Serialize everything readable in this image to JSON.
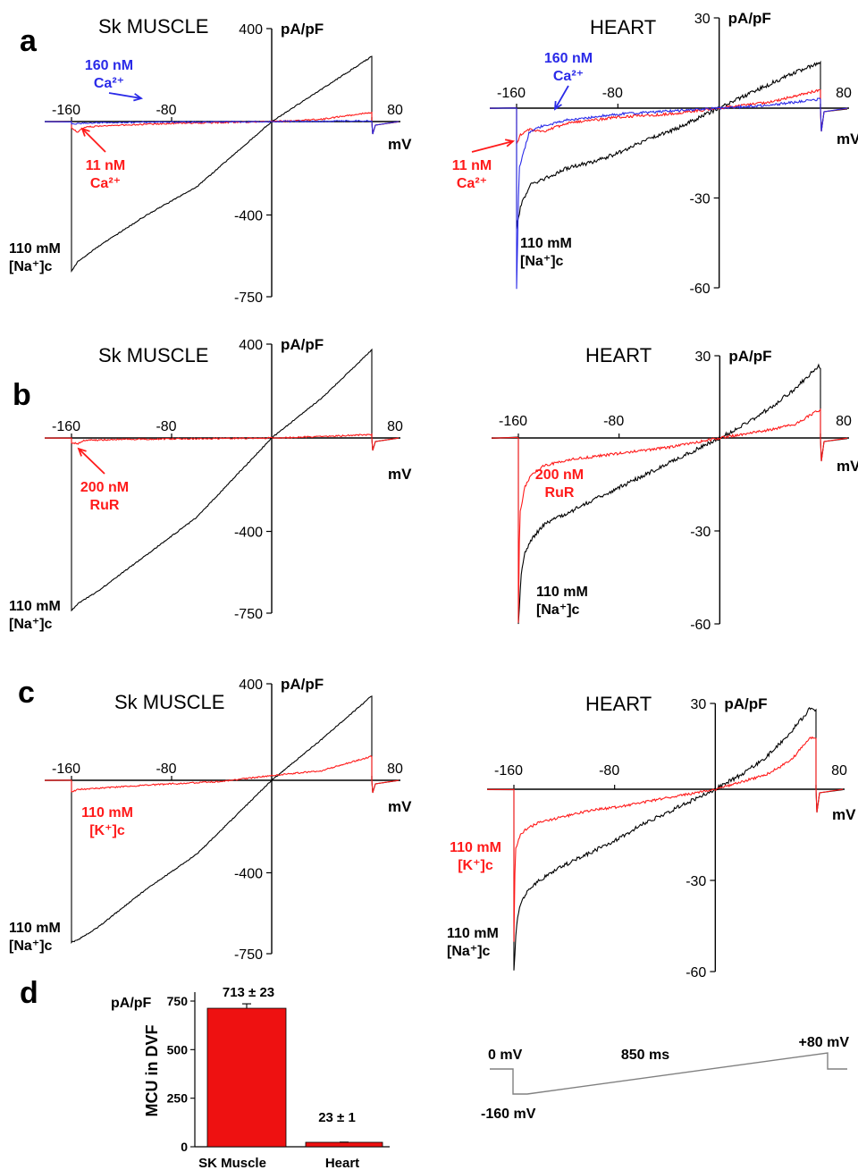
{
  "colors": {
    "black": "#000000",
    "red": "#ff1a1a",
    "blue": "#2a2ae8",
    "grey": "#808080",
    "bar": "#ee1111"
  },
  "panel_letters": [
    "a",
    "b",
    "c",
    "d"
  ],
  "chart_data": [
    {
      "type": "line",
      "id": "a-sk",
      "title": "Sk MUSCLE",
      "xlabel": "mV",
      "ylabel": "pA/pF",
      "xlim": [
        -160,
        80
      ],
      "ylim": [
        -750,
        400
      ],
      "x_ticks": [
        {
          "value": -160,
          "label": "-160"
        },
        {
          "value": -80,
          "label": "-80"
        },
        {
          "value": 80,
          "label": "80"
        }
      ],
      "y_ticks": [
        {
          "value": 400,
          "label": "400"
        },
        {
          "value": -400,
          "label": "-400"
        },
        {
          "value": -750,
          "label": "-750"
        }
      ],
      "series": [
        {
          "color": "black",
          "x": [
            -160,
            -155,
            -140,
            -100,
            -60,
            0,
            40,
            80
          ],
          "y": [
            -640,
            -600,
            -540,
            -400,
            -280,
            0,
            140,
            280
          ]
        },
        {
          "color": "red",
          "x": [
            -160,
            -155,
            -150,
            -140,
            -120,
            -80,
            -40,
            0,
            40,
            80
          ],
          "y": [
            -30,
            -45,
            -25,
            -20,
            -15,
            -8,
            -4,
            0,
            10,
            40
          ]
        },
        {
          "color": "blue",
          "x": [
            -160,
            -150,
            -120,
            -80,
            0,
            80
          ],
          "y": [
            -10,
            -6,
            -4,
            -2,
            0,
            3
          ]
        }
      ],
      "annotations": [
        {
          "lines": [
            "160 nM",
            "Ca²⁺"
          ],
          "color": "blue"
        },
        {
          "lines": [
            "11 nM",
            "Ca²⁺"
          ],
          "color": "red"
        },
        {
          "lines": [
            "110 mM",
            "[Na⁺]c"
          ],
          "color": "black"
        }
      ]
    },
    {
      "type": "line",
      "id": "a-heart",
      "title": "HEART",
      "xlabel": "mV",
      "ylabel": "pA/pF",
      "xlim": [
        -160,
        80
      ],
      "ylim": [
        -60,
        30
      ],
      "x_ticks": [
        {
          "value": -160,
          "label": "-160"
        },
        {
          "value": -80,
          "label": "-80"
        },
        {
          "value": 80,
          "label": "80"
        }
      ],
      "y_ticks": [
        {
          "value": 30,
          "label": "30"
        },
        {
          "value": -30,
          "label": "-30"
        },
        {
          "value": -60,
          "label": "-60"
        }
      ],
      "series": [
        {
          "color": "black",
          "x": [
            -160,
            -157,
            -150,
            -140,
            -120,
            -100,
            -80,
            -60,
            -40,
            -20,
            0,
            20,
            40,
            60,
            79
          ],
          "y": [
            -40,
            -33,
            -26,
            -24,
            -20,
            -18,
            -15,
            -11,
            -8,
            -4,
            0,
            4,
            8,
            12,
            15
          ]
        },
        {
          "color": "red",
          "x": [
            -160,
            -157,
            -150,
            -140,
            -120,
            -100,
            -80,
            -40,
            0,
            40,
            60,
            79
          ],
          "y": [
            -12,
            -9,
            -7,
            -8,
            -5,
            -4,
            -3,
            -2,
            0,
            2,
            4,
            6
          ]
        },
        {
          "color": "blue",
          "x": [
            -160,
            -158,
            -150,
            -140,
            -120,
            -100,
            -80,
            -40,
            0,
            40,
            60,
            79
          ],
          "y": [
            -60,
            -20,
            -8,
            -6,
            -4,
            -3,
            -2,
            -1,
            0,
            1,
            2,
            3
          ]
        }
      ],
      "annotations": [
        {
          "lines": [
            "160 nM",
            "Ca²⁺"
          ],
          "color": "blue"
        },
        {
          "lines": [
            "11 nM",
            "Ca²⁺"
          ],
          "color": "red"
        },
        {
          "lines": [
            "110 mM",
            "[Na⁺]c"
          ],
          "color": "black"
        }
      ]
    },
    {
      "type": "line",
      "id": "b-sk",
      "title": "Sk MUSCLE",
      "xlabel": "mV",
      "ylabel": "pA/pF",
      "xlim": [
        -160,
        80
      ],
      "ylim": [
        -750,
        400
      ],
      "x_ticks": [
        {
          "value": -160,
          "label": "-160"
        },
        {
          "value": -80,
          "label": "-80"
        },
        {
          "value": 80,
          "label": "80"
        }
      ],
      "y_ticks": [
        {
          "value": 400,
          "label": "400"
        },
        {
          "value": -400,
          "label": "-400"
        },
        {
          "value": -750,
          "label": "-750"
        }
      ],
      "series": [
        {
          "color": "black",
          "x": [
            -160,
            -155,
            -140,
            -100,
            -60,
            0,
            40,
            80
          ],
          "y": [
            -740,
            -710,
            -660,
            -500,
            -340,
            0,
            170,
            375
          ]
        },
        {
          "color": "red",
          "x": [
            -160,
            -155,
            -150,
            -120,
            -80,
            0,
            40,
            80
          ],
          "y": [
            -20,
            -25,
            -10,
            -6,
            -4,
            0,
            6,
            15
          ]
        }
      ],
      "annotations": [
        {
          "lines": [
            "200 nM",
            "RuR"
          ],
          "color": "red"
        },
        {
          "lines": [
            "110 mM",
            "[Na⁺]c"
          ],
          "color": "black"
        }
      ]
    },
    {
      "type": "line",
      "id": "b-heart",
      "title": "HEART",
      "xlabel": "mV",
      "ylabel": "pA/pF",
      "xlim": [
        -160,
        80
      ],
      "ylim": [
        -60,
        30
      ],
      "x_ticks": [
        {
          "value": -160,
          "label": "-160"
        },
        {
          "value": -80,
          "label": "-80"
        },
        {
          "value": 80,
          "label": "80"
        }
      ],
      "y_ticks": [
        {
          "value": 30,
          "label": "30"
        },
        {
          "value": -30,
          "label": "-30"
        },
        {
          "value": -60,
          "label": "-60"
        }
      ],
      "series": [
        {
          "color": "black",
          "x": [
            -160,
            -158,
            -155,
            -150,
            -140,
            -120,
            -100,
            -80,
            -60,
            -40,
            -20,
            0,
            20,
            40,
            60,
            78
          ],
          "y": [
            -60,
            -45,
            -37,
            -33,
            -28,
            -24,
            -20,
            -16,
            -12,
            -8,
            -4,
            0,
            5,
            11,
            18,
            26
          ]
        },
        {
          "color": "red",
          "x": [
            -160,
            -159,
            -155,
            -150,
            -140,
            -120,
            -100,
            -80,
            -40,
            0,
            40,
            60,
            78
          ],
          "y": [
            -60,
            -25,
            -16,
            -12,
            -9,
            -7,
            -6,
            -5,
            -3,
            0,
            3,
            5,
            10
          ]
        }
      ],
      "annotations": [
        {
          "lines": [
            "200 nM",
            "RuR"
          ],
          "color": "red"
        },
        {
          "lines": [
            "110 mM",
            "[Na⁺]c"
          ],
          "color": "black"
        }
      ]
    },
    {
      "type": "line",
      "id": "c-sk",
      "title": "Sk MUSCLE",
      "xlabel": "mV",
      "ylabel": "pA/pF",
      "xlim": [
        -160,
        80
      ],
      "ylim": [
        -750,
        400
      ],
      "x_ticks": [
        {
          "value": -160,
          "label": "-160"
        },
        {
          "value": -80,
          "label": "-80"
        },
        {
          "value": 80,
          "label": "80"
        }
      ],
      "y_ticks": [
        {
          "value": 400,
          "label": "400"
        },
        {
          "value": -400,
          "label": "-400"
        },
        {
          "value": -750,
          "label": "-750"
        }
      ],
      "series": [
        {
          "color": "black",
          "x": [
            -160,
            -155,
            -140,
            -100,
            -60,
            0,
            40,
            80
          ],
          "y": [
            -700,
            -690,
            -640,
            -470,
            -320,
            0,
            170,
            350
          ]
        },
        {
          "color": "red",
          "x": [
            -160,
            -155,
            -140,
            -120,
            -80,
            -40,
            0,
            40,
            80
          ],
          "y": [
            -50,
            -40,
            -35,
            -28,
            -15,
            -5,
            20,
            40,
            100
          ]
        }
      ],
      "annotations": [
        {
          "lines": [
            "110 mM",
            "[K⁺]c"
          ],
          "color": "red"
        },
        {
          "lines": [
            "110 mM",
            "[Na⁺]c"
          ],
          "color": "black"
        }
      ]
    },
    {
      "type": "line",
      "id": "c-heart",
      "title": "HEART",
      "xlabel": "mV",
      "ylabel": "pA/pF",
      "xlim": [
        -160,
        80
      ],
      "ylim": [
        -60,
        30
      ],
      "x_ticks": [
        {
          "value": -160,
          "label": "-160"
        },
        {
          "value": -80,
          "label": "-80"
        },
        {
          "value": 80,
          "label": "80"
        }
      ],
      "y_ticks": [
        {
          "value": 30,
          "label": "30"
        },
        {
          "value": -30,
          "label": "-30"
        },
        {
          "value": -60,
          "label": "-60"
        }
      ],
      "series": [
        {
          "color": "black",
          "x": [
            -160,
            -158,
            -155,
            -150,
            -140,
            -120,
            -100,
            -80,
            -60,
            -40,
            -20,
            0,
            20,
            40,
            60,
            75
          ],
          "y": [
            -60,
            -45,
            -38,
            -34,
            -30,
            -25,
            -21,
            -17,
            -12,
            -8,
            -4,
            0,
            5,
            11,
            20,
            28
          ]
        },
        {
          "color": "red",
          "x": [
            -160,
            -159,
            -155,
            -150,
            -140,
            -120,
            -100,
            -80,
            -40,
            0,
            40,
            60,
            75
          ],
          "y": [
            -50,
            -20,
            -15,
            -13,
            -11,
            -9,
            -7,
            -6,
            -3,
            0,
            5,
            10,
            18
          ]
        }
      ],
      "annotations": [
        {
          "lines": [
            "110 mM",
            "[K⁺]c"
          ],
          "color": "red"
        },
        {
          "lines": [
            "110 mM",
            "[Na⁺]c"
          ],
          "color": "black"
        }
      ]
    },
    {
      "type": "bar",
      "id": "d-bar",
      "categories": [
        "SK Muscle",
        "Heart"
      ],
      "values": [
        713,
        23
      ],
      "errors": [
        23,
        1
      ],
      "value_labels": [
        "713 ± 23",
        "23 ± 1"
      ],
      "ylabel": "MCU in DVF",
      "unit_label": "pA/pF",
      "ylim": [
        0,
        750
      ],
      "y_ticks": [
        {
          "value": 750,
          "label": "750"
        },
        {
          "value": 500,
          "label": "500"
        },
        {
          "value": 250,
          "label": "250"
        },
        {
          "value": 0,
          "label": "0"
        }
      ]
    },
    {
      "type": "protocol",
      "id": "d-protocol",
      "labels": {
        "start": "0 mV",
        "duration": "850 ms",
        "end": "+80 mV",
        "low": "-160 mV"
      },
      "steps_mV": [
        0,
        -160,
        80,
        0
      ]
    }
  ]
}
